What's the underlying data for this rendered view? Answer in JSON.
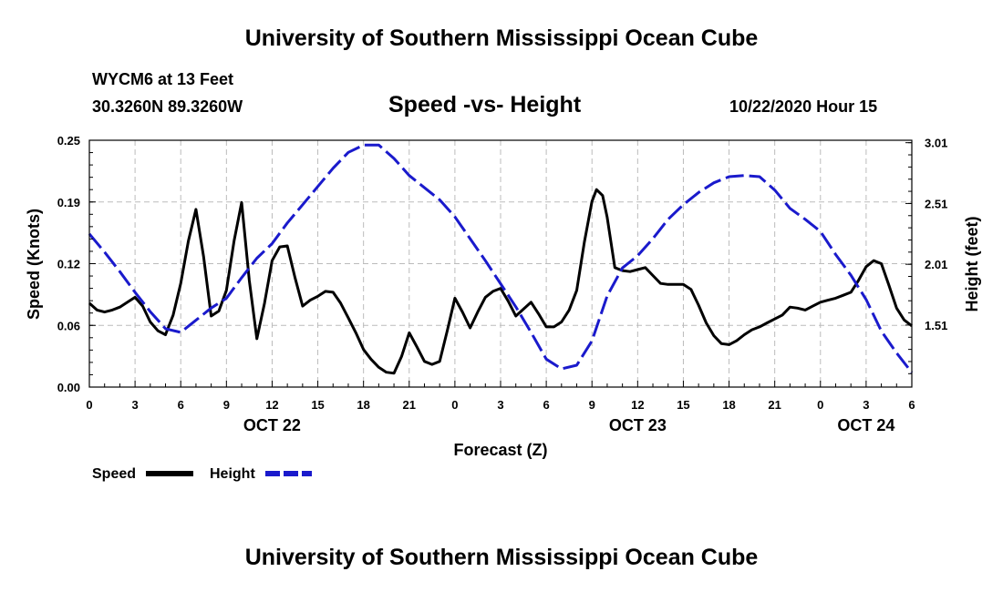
{
  "header": {
    "title": "University of Southern Mississippi Ocean Cube",
    "station": "WYCM6 at 13 Feet",
    "coords": "30.3260N 89.3260W",
    "subtitle": "Speed -vs- Height",
    "run_time": "10/22/2020 Hour 15"
  },
  "footer": {
    "title": "University of Southern Mississippi Ocean Cube"
  },
  "colors": {
    "speed": "#000000",
    "height": "#1a1acc",
    "grid": "#bbbbbb"
  },
  "chart_data": {
    "type": "line",
    "title": "Speed -vs- Height",
    "xlabel": "Forecast (Z)",
    "ylabel": "Speed (Knots)",
    "y2label": "Height (feet)",
    "x_range": [
      0,
      54
    ],
    "ylim": [
      0,
      0.25
    ],
    "y2lim": [
      1.0,
      3.03
    ],
    "grid": true,
    "legend_position": "bottom-left",
    "x_ticks": [
      {
        "x": 0,
        "label": "0"
      },
      {
        "x": 3,
        "label": "3"
      },
      {
        "x": 6,
        "label": "6"
      },
      {
        "x": 9,
        "label": "9"
      },
      {
        "x": 12,
        "label": "12"
      },
      {
        "x": 15,
        "label": "15"
      },
      {
        "x": 18,
        "label": "18"
      },
      {
        "x": 21,
        "label": "21"
      },
      {
        "x": 24,
        "label": "0"
      },
      {
        "x": 27,
        "label": "3"
      },
      {
        "x": 30,
        "label": "6"
      },
      {
        "x": 33,
        "label": "9"
      },
      {
        "x": 36,
        "label": "12"
      },
      {
        "x": 39,
        "label": "15"
      },
      {
        "x": 42,
        "label": "18"
      },
      {
        "x": 45,
        "label": "21"
      },
      {
        "x": 48,
        "label": "0"
      },
      {
        "x": 51,
        "label": "3"
      },
      {
        "x": 54,
        "label": "6"
      }
    ],
    "date_labels": [
      {
        "x": 12,
        "label": "OCT 22"
      },
      {
        "x": 36,
        "label": "OCT 23"
      },
      {
        "x": 51,
        "label": "OCT 24"
      }
    ],
    "y_ticks": [
      {
        "value": 0.0,
        "label": "0.00"
      },
      {
        "value": 0.0625,
        "label": "0.06"
      },
      {
        "value": 0.125,
        "label": "0.12"
      },
      {
        "value": 0.1875,
        "label": "0.19"
      },
      {
        "value": 0.25,
        "label": "0.25"
      }
    ],
    "y2_ticks": [
      {
        "value": 1.51,
        "label": "1.51"
      },
      {
        "value": 2.01,
        "label": "2.01"
      },
      {
        "value": 2.51,
        "label": "2.51"
      },
      {
        "value": 3.01,
        "label": "3.01"
      }
    ],
    "series": [
      {
        "name": "Speed",
        "axis": "left",
        "style": "solid",
        "points": [
          [
            0,
            0.085
          ],
          [
            0.5,
            0.078
          ],
          [
            1,
            0.076
          ],
          [
            1.5,
            0.078
          ],
          [
            2,
            0.081
          ],
          [
            2.5,
            0.086
          ],
          [
            3,
            0.091
          ],
          [
            3.5,
            0.082
          ],
          [
            4,
            0.066
          ],
          [
            4.5,
            0.057
          ],
          [
            5,
            0.053
          ],
          [
            5.5,
            0.073
          ],
          [
            6,
            0.105
          ],
          [
            6.5,
            0.148
          ],
          [
            7,
            0.18
          ],
          [
            7.5,
            0.132
          ],
          [
            8,
            0.072
          ],
          [
            8.5,
            0.077
          ],
          [
            9,
            0.098
          ],
          [
            9.5,
            0.148
          ],
          [
            10,
            0.187
          ],
          [
            10.5,
            0.108
          ],
          [
            11,
            0.049
          ],
          [
            11.5,
            0.085
          ],
          [
            12,
            0.128
          ],
          [
            12.5,
            0.142
          ],
          [
            13,
            0.143
          ],
          [
            13.5,
            0.111
          ],
          [
            14,
            0.082
          ],
          [
            14.5,
            0.088
          ],
          [
            15,
            0.092
          ],
          [
            15.5,
            0.097
          ],
          [
            16,
            0.096
          ],
          [
            16.5,
            0.085
          ],
          [
            17,
            0.07
          ],
          [
            17.5,
            0.055
          ],
          [
            18,
            0.038
          ],
          [
            18.5,
            0.028
          ],
          [
            19,
            0.02
          ],
          [
            19.5,
            0.015
          ],
          [
            20,
            0.014
          ],
          [
            20.5,
            0.031
          ],
          [
            21,
            0.055
          ],
          [
            21.5,
            0.041
          ],
          [
            22,
            0.026
          ],
          [
            22.5,
            0.023
          ],
          [
            23,
            0.026
          ],
          [
            23.5,
            0.057
          ],
          [
            24,
            0.09
          ],
          [
            24.5,
            0.076
          ],
          [
            25,
            0.06
          ],
          [
            25.5,
            0.076
          ],
          [
            26,
            0.091
          ],
          [
            26.5,
            0.097
          ],
          [
            27,
            0.1
          ],
          [
            27.5,
            0.087
          ],
          [
            28,
            0.072
          ],
          [
            28.5,
            0.079
          ],
          [
            29,
            0.086
          ],
          [
            29.5,
            0.074
          ],
          [
            30,
            0.061
          ],
          [
            30.5,
            0.061
          ],
          [
            31,
            0.066
          ],
          [
            31.5,
            0.078
          ],
          [
            32,
            0.098
          ],
          [
            32.5,
            0.147
          ],
          [
            33,
            0.188
          ],
          [
            33.3,
            0.2
          ],
          [
            33.7,
            0.194
          ],
          [
            34,
            0.172
          ],
          [
            34.5,
            0.121
          ],
          [
            35,
            0.118
          ],
          [
            35.5,
            0.117
          ],
          [
            36,
            0.119
          ],
          [
            36.5,
            0.121
          ],
          [
            37,
            0.113
          ],
          [
            37.5,
            0.105
          ],
          [
            38,
            0.104
          ],
          [
            38.5,
            0.104
          ],
          [
            39,
            0.104
          ],
          [
            39.5,
            0.099
          ],
          [
            40,
            0.083
          ],
          [
            40.5,
            0.065
          ],
          [
            41,
            0.052
          ],
          [
            41.5,
            0.044
          ],
          [
            42,
            0.043
          ],
          [
            42.5,
            0.047
          ],
          [
            43,
            0.053
          ],
          [
            43.5,
            0.058
          ],
          [
            44,
            0.061
          ],
          [
            44.5,
            0.065
          ],
          [
            45,
            0.069
          ],
          [
            45.5,
            0.073
          ],
          [
            46,
            0.081
          ],
          [
            46.5,
            0.08
          ],
          [
            47,
            0.078
          ],
          [
            47.5,
            0.082
          ],
          [
            48,
            0.086
          ],
          [
            48.5,
            0.088
          ],
          [
            49,
            0.09
          ],
          [
            49.5,
            0.093
          ],
          [
            50,
            0.096
          ],
          [
            50.5,
            0.108
          ],
          [
            51,
            0.122
          ],
          [
            51.5,
            0.128
          ],
          [
            52,
            0.125
          ],
          [
            52.5,
            0.103
          ],
          [
            53,
            0.08
          ],
          [
            53.5,
            0.068
          ],
          [
            54,
            0.062
          ]
        ]
      },
      {
        "name": "Height",
        "axis": "right",
        "style": "dashed",
        "points": [
          [
            0,
            2.26
          ],
          [
            1,
            2.11
          ],
          [
            2,
            1.95
          ],
          [
            3,
            1.78
          ],
          [
            4,
            1.62
          ],
          [
            5,
            1.48
          ],
          [
            6,
            1.45
          ],
          [
            7,
            1.55
          ],
          [
            8,
            1.65
          ],
          [
            9,
            1.73
          ],
          [
            10,
            1.9
          ],
          [
            11,
            2.06
          ],
          [
            12,
            2.18
          ],
          [
            13,
            2.35
          ],
          [
            14,
            2.5
          ],
          [
            15,
            2.65
          ],
          [
            16,
            2.8
          ],
          [
            17,
            2.93
          ],
          [
            18,
            2.99
          ],
          [
            19,
            2.99
          ],
          [
            20,
            2.88
          ],
          [
            21,
            2.74
          ],
          [
            22,
            2.64
          ],
          [
            23,
            2.54
          ],
          [
            24,
            2.4
          ],
          [
            25,
            2.22
          ],
          [
            26,
            2.04
          ],
          [
            27,
            1.85
          ],
          [
            28,
            1.66
          ],
          [
            29,
            1.45
          ],
          [
            30,
            1.23
          ],
          [
            31,
            1.15
          ],
          [
            32,
            1.18
          ],
          [
            33,
            1.38
          ],
          [
            34,
            1.75
          ],
          [
            35,
            1.98
          ],
          [
            36,
            2.08
          ],
          [
            37,
            2.22
          ],
          [
            38,
            2.38
          ],
          [
            39,
            2.5
          ],
          [
            40,
            2.6
          ],
          [
            41,
            2.68
          ],
          [
            42,
            2.73
          ],
          [
            43,
            2.74
          ],
          [
            44,
            2.73
          ],
          [
            45,
            2.62
          ],
          [
            46,
            2.47
          ],
          [
            47,
            2.38
          ],
          [
            48,
            2.28
          ],
          [
            49,
            2.09
          ],
          [
            50,
            1.92
          ],
          [
            51,
            1.72
          ],
          [
            52,
            1.46
          ],
          [
            53,
            1.28
          ],
          [
            54,
            1.12
          ]
        ]
      }
    ]
  }
}
